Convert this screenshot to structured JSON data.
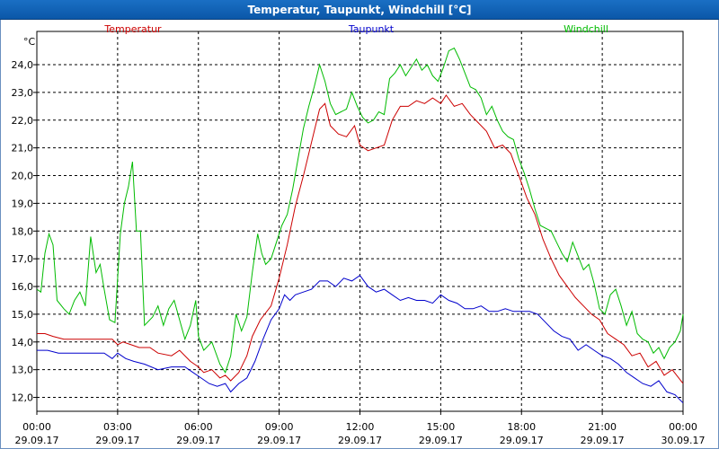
{
  "window": {
    "title": "Temperatur, Taupunkt, Windchill [°C]"
  },
  "chart_data": {
    "type": "line",
    "title": "Temperatur, Taupunkt, Windchill [°C]",
    "ylabel": "°C",
    "ylim": [
      11.5,
      25.2
    ],
    "xlim_hours": [
      0,
      24
    ],
    "grid": true,
    "legend_placement": "top",
    "y_ticks": [
      "12,0",
      "13,0",
      "14,0",
      "15,0",
      "16,0",
      "17,0",
      "18,0",
      "19,0",
      "20,0",
      "21,0",
      "22,0",
      "23,0",
      "24,0"
    ],
    "x_ticks": [
      {
        "time": "00:00",
        "date": "29.09.17"
      },
      {
        "time": "03:00",
        "date": "29.09.17"
      },
      {
        "time": "06:00",
        "date": "29.09.17"
      },
      {
        "time": "09:00",
        "date": "29.09.17"
      },
      {
        "time": "12:00",
        "date": "29.09.17"
      },
      {
        "time": "15:00",
        "date": "29.09.17"
      },
      {
        "time": "18:00",
        "date": "29.09.17"
      },
      {
        "time": "21:00",
        "date": "29.09.17"
      },
      {
        "time": "00:00",
        "date": "30.09.17"
      }
    ],
    "series": [
      {
        "name": "Temperatur",
        "color": "#cc0000",
        "points": [
          [
            0.0,
            14.3
          ],
          [
            0.3,
            14.3
          ],
          [
            0.6,
            14.2
          ],
          [
            1.0,
            14.1
          ],
          [
            1.5,
            14.1
          ],
          [
            2.0,
            14.1
          ],
          [
            2.5,
            14.1
          ],
          [
            2.8,
            14.1
          ],
          [
            3.0,
            13.9
          ],
          [
            3.2,
            14.0
          ],
          [
            3.5,
            13.9
          ],
          [
            3.8,
            13.8
          ],
          [
            4.2,
            13.8
          ],
          [
            4.5,
            13.6
          ],
          [
            5.0,
            13.5
          ],
          [
            5.3,
            13.7
          ],
          [
            5.7,
            13.3
          ],
          [
            6.0,
            13.1
          ],
          [
            6.2,
            12.9
          ],
          [
            6.5,
            13.0
          ],
          [
            6.8,
            12.7
          ],
          [
            7.0,
            12.8
          ],
          [
            7.2,
            12.6
          ],
          [
            7.5,
            12.9
          ],
          [
            7.8,
            13.5
          ],
          [
            8.0,
            14.2
          ],
          [
            8.3,
            14.8
          ],
          [
            8.7,
            15.3
          ],
          [
            9.0,
            16.3
          ],
          [
            9.3,
            17.5
          ],
          [
            9.6,
            18.9
          ],
          [
            9.9,
            20.0
          ],
          [
            10.2,
            21.2
          ],
          [
            10.5,
            22.4
          ],
          [
            10.7,
            22.6
          ],
          [
            10.9,
            21.8
          ],
          [
            11.2,
            21.5
          ],
          [
            11.5,
            21.4
          ],
          [
            11.8,
            21.8
          ],
          [
            12.0,
            21.1
          ],
          [
            12.3,
            20.9
          ],
          [
            12.6,
            21.0
          ],
          [
            12.9,
            21.1
          ],
          [
            13.2,
            22.0
          ],
          [
            13.5,
            22.5
          ],
          [
            13.8,
            22.5
          ],
          [
            14.1,
            22.7
          ],
          [
            14.4,
            22.6
          ],
          [
            14.7,
            22.8
          ],
          [
            15.0,
            22.6
          ],
          [
            15.2,
            22.9
          ],
          [
            15.5,
            22.5
          ],
          [
            15.8,
            22.6
          ],
          [
            16.1,
            22.2
          ],
          [
            16.4,
            21.9
          ],
          [
            16.7,
            21.6
          ],
          [
            17.0,
            21.0
          ],
          [
            17.3,
            21.1
          ],
          [
            17.6,
            20.8
          ],
          [
            17.9,
            20.0
          ],
          [
            18.2,
            19.2
          ],
          [
            18.5,
            18.6
          ],
          [
            18.8,
            17.7
          ],
          [
            19.1,
            17.0
          ],
          [
            19.4,
            16.4
          ],
          [
            19.7,
            16.0
          ],
          [
            20.0,
            15.6
          ],
          [
            20.3,
            15.3
          ],
          [
            20.6,
            15.0
          ],
          [
            20.9,
            14.8
          ],
          [
            21.2,
            14.3
          ],
          [
            21.5,
            14.1
          ],
          [
            21.8,
            13.9
          ],
          [
            22.1,
            13.5
          ],
          [
            22.4,
            13.6
          ],
          [
            22.7,
            13.1
          ],
          [
            23.0,
            13.3
          ],
          [
            23.3,
            12.8
          ],
          [
            23.6,
            13.0
          ],
          [
            24.0,
            12.5
          ]
        ]
      },
      {
        "name": "Taupunkt",
        "color": "#0000cc",
        "points": [
          [
            0.0,
            13.7
          ],
          [
            0.4,
            13.7
          ],
          [
            0.8,
            13.6
          ],
          [
            1.2,
            13.6
          ],
          [
            1.6,
            13.6
          ],
          [
            2.0,
            13.6
          ],
          [
            2.5,
            13.6
          ],
          [
            2.8,
            13.4
          ],
          [
            3.0,
            13.6
          ],
          [
            3.3,
            13.4
          ],
          [
            3.6,
            13.3
          ],
          [
            4.0,
            13.2
          ],
          [
            4.5,
            13.0
          ],
          [
            5.0,
            13.1
          ],
          [
            5.5,
            13.1
          ],
          [
            5.8,
            12.9
          ],
          [
            6.1,
            12.7
          ],
          [
            6.4,
            12.5
          ],
          [
            6.7,
            12.4
          ],
          [
            7.0,
            12.5
          ],
          [
            7.2,
            12.2
          ],
          [
            7.5,
            12.5
          ],
          [
            7.8,
            12.7
          ],
          [
            8.1,
            13.3
          ],
          [
            8.4,
            14.1
          ],
          [
            8.7,
            14.8
          ],
          [
            9.0,
            15.2
          ],
          [
            9.2,
            15.7
          ],
          [
            9.4,
            15.5
          ],
          [
            9.6,
            15.7
          ],
          [
            9.9,
            15.8
          ],
          [
            10.2,
            15.9
          ],
          [
            10.5,
            16.2
          ],
          [
            10.8,
            16.2
          ],
          [
            11.1,
            16.0
          ],
          [
            11.4,
            16.3
          ],
          [
            11.7,
            16.2
          ],
          [
            12.0,
            16.4
          ],
          [
            12.3,
            16.0
          ],
          [
            12.6,
            15.8
          ],
          [
            12.9,
            15.9
          ],
          [
            13.2,
            15.7
          ],
          [
            13.5,
            15.5
          ],
          [
            13.8,
            15.6
          ],
          [
            14.1,
            15.5
          ],
          [
            14.4,
            15.5
          ],
          [
            14.7,
            15.4
          ],
          [
            15.0,
            15.7
          ],
          [
            15.3,
            15.5
          ],
          [
            15.6,
            15.4
          ],
          [
            15.9,
            15.2
          ],
          [
            16.2,
            15.2
          ],
          [
            16.5,
            15.3
          ],
          [
            16.8,
            15.1
          ],
          [
            17.1,
            15.1
          ],
          [
            17.4,
            15.2
          ],
          [
            17.7,
            15.1
          ],
          [
            18.0,
            15.1
          ],
          [
            18.3,
            15.1
          ],
          [
            18.6,
            15.0
          ],
          [
            18.9,
            14.7
          ],
          [
            19.2,
            14.4
          ],
          [
            19.5,
            14.2
          ],
          [
            19.8,
            14.1
          ],
          [
            20.1,
            13.7
          ],
          [
            20.4,
            13.9
          ],
          [
            20.7,
            13.7
          ],
          [
            21.0,
            13.5
          ],
          [
            21.3,
            13.4
          ],
          [
            21.6,
            13.2
          ],
          [
            21.9,
            12.9
          ],
          [
            22.2,
            12.7
          ],
          [
            22.5,
            12.5
          ],
          [
            22.8,
            12.4
          ],
          [
            23.1,
            12.6
          ],
          [
            23.4,
            12.2
          ],
          [
            23.7,
            12.1
          ],
          [
            24.0,
            11.8
          ]
        ]
      },
      {
        "name": "Windchill",
        "color": "#00bb00",
        "points": [
          [
            0.0,
            15.9
          ],
          [
            0.15,
            15.8
          ],
          [
            0.3,
            17.2
          ],
          [
            0.45,
            17.9
          ],
          [
            0.6,
            17.5
          ],
          [
            0.75,
            15.5
          ],
          [
            1.0,
            15.2
          ],
          [
            1.2,
            15.0
          ],
          [
            1.4,
            15.5
          ],
          [
            1.6,
            15.8
          ],
          [
            1.8,
            15.3
          ],
          [
            2.0,
            17.8
          ],
          [
            2.2,
            16.5
          ],
          [
            2.35,
            16.8
          ],
          [
            2.5,
            15.9
          ],
          [
            2.7,
            14.8
          ],
          [
            2.9,
            14.7
          ],
          [
            3.1,
            17.9
          ],
          [
            3.25,
            19.0
          ],
          [
            3.4,
            19.6
          ],
          [
            3.55,
            20.5
          ],
          [
            3.7,
            18.0
          ],
          [
            3.85,
            18.0
          ],
          [
            4.0,
            14.6
          ],
          [
            4.3,
            14.9
          ],
          [
            4.5,
            15.3
          ],
          [
            4.7,
            14.6
          ],
          [
            4.9,
            15.2
          ],
          [
            5.1,
            15.5
          ],
          [
            5.3,
            14.8
          ],
          [
            5.5,
            14.1
          ],
          [
            5.7,
            14.6
          ],
          [
            5.9,
            15.5
          ],
          [
            6.0,
            14.2
          ],
          [
            6.2,
            13.7
          ],
          [
            6.5,
            14.0
          ],
          [
            6.8,
            13.2
          ],
          [
            7.0,
            12.9
          ],
          [
            7.2,
            13.5
          ],
          [
            7.4,
            15.0
          ],
          [
            7.6,
            14.4
          ],
          [
            7.8,
            14.9
          ],
          [
            8.0,
            16.5
          ],
          [
            8.2,
            17.9
          ],
          [
            8.35,
            17.2
          ],
          [
            8.5,
            16.8
          ],
          [
            8.7,
            17.0
          ],
          [
            8.9,
            17.6
          ],
          [
            9.1,
            18.2
          ],
          [
            9.3,
            18.6
          ],
          [
            9.5,
            19.5
          ],
          [
            9.7,
            20.6
          ],
          [
            9.9,
            21.7
          ],
          [
            10.1,
            22.5
          ],
          [
            10.3,
            23.2
          ],
          [
            10.5,
            24.0
          ],
          [
            10.7,
            23.4
          ],
          [
            10.9,
            22.6
          ],
          [
            11.1,
            22.2
          ],
          [
            11.3,
            22.3
          ],
          [
            11.5,
            22.4
          ],
          [
            11.7,
            23.0
          ],
          [
            11.9,
            22.5
          ],
          [
            12.1,
            22.1
          ],
          [
            12.3,
            21.9
          ],
          [
            12.5,
            22.0
          ],
          [
            12.7,
            22.3
          ],
          [
            12.9,
            22.2
          ],
          [
            13.1,
            23.5
          ],
          [
            13.3,
            23.7
          ],
          [
            13.5,
            24.0
          ],
          [
            13.7,
            23.6
          ],
          [
            13.9,
            23.9
          ],
          [
            14.1,
            24.2
          ],
          [
            14.3,
            23.8
          ],
          [
            14.5,
            24.0
          ],
          [
            14.7,
            23.6
          ],
          [
            14.9,
            23.4
          ],
          [
            15.1,
            23.9
          ],
          [
            15.3,
            24.5
          ],
          [
            15.5,
            24.6
          ],
          [
            15.7,
            24.2
          ],
          [
            15.9,
            23.7
          ],
          [
            16.1,
            23.2
          ],
          [
            16.3,
            23.1
          ],
          [
            16.5,
            22.8
          ],
          [
            16.7,
            22.2
          ],
          [
            16.9,
            22.5
          ],
          [
            17.1,
            22.0
          ],
          [
            17.3,
            21.6
          ],
          [
            17.5,
            21.4
          ],
          [
            17.7,
            21.3
          ],
          [
            17.9,
            20.6
          ],
          [
            18.1,
            20.1
          ],
          [
            18.3,
            19.5
          ],
          [
            18.5,
            18.8
          ],
          [
            18.7,
            18.2
          ],
          [
            18.9,
            18.1
          ],
          [
            19.1,
            18.0
          ],
          [
            19.3,
            17.6
          ],
          [
            19.5,
            17.2
          ],
          [
            19.7,
            16.9
          ],
          [
            19.9,
            17.6
          ],
          [
            20.1,
            17.1
          ],
          [
            20.3,
            16.6
          ],
          [
            20.5,
            16.8
          ],
          [
            20.7,
            16.1
          ],
          [
            20.9,
            15.2
          ],
          [
            21.1,
            15.0
          ],
          [
            21.3,
            15.7
          ],
          [
            21.5,
            15.9
          ],
          [
            21.7,
            15.3
          ],
          [
            21.9,
            14.6
          ],
          [
            22.1,
            15.1
          ],
          [
            22.3,
            14.3
          ],
          [
            22.5,
            14.1
          ],
          [
            22.7,
            14.0
          ],
          [
            22.9,
            13.6
          ],
          [
            23.1,
            13.8
          ],
          [
            23.3,
            13.4
          ],
          [
            23.5,
            13.8
          ],
          [
            23.7,
            14.0
          ],
          [
            23.9,
            14.4
          ],
          [
            24.0,
            15.0
          ]
        ]
      }
    ]
  }
}
